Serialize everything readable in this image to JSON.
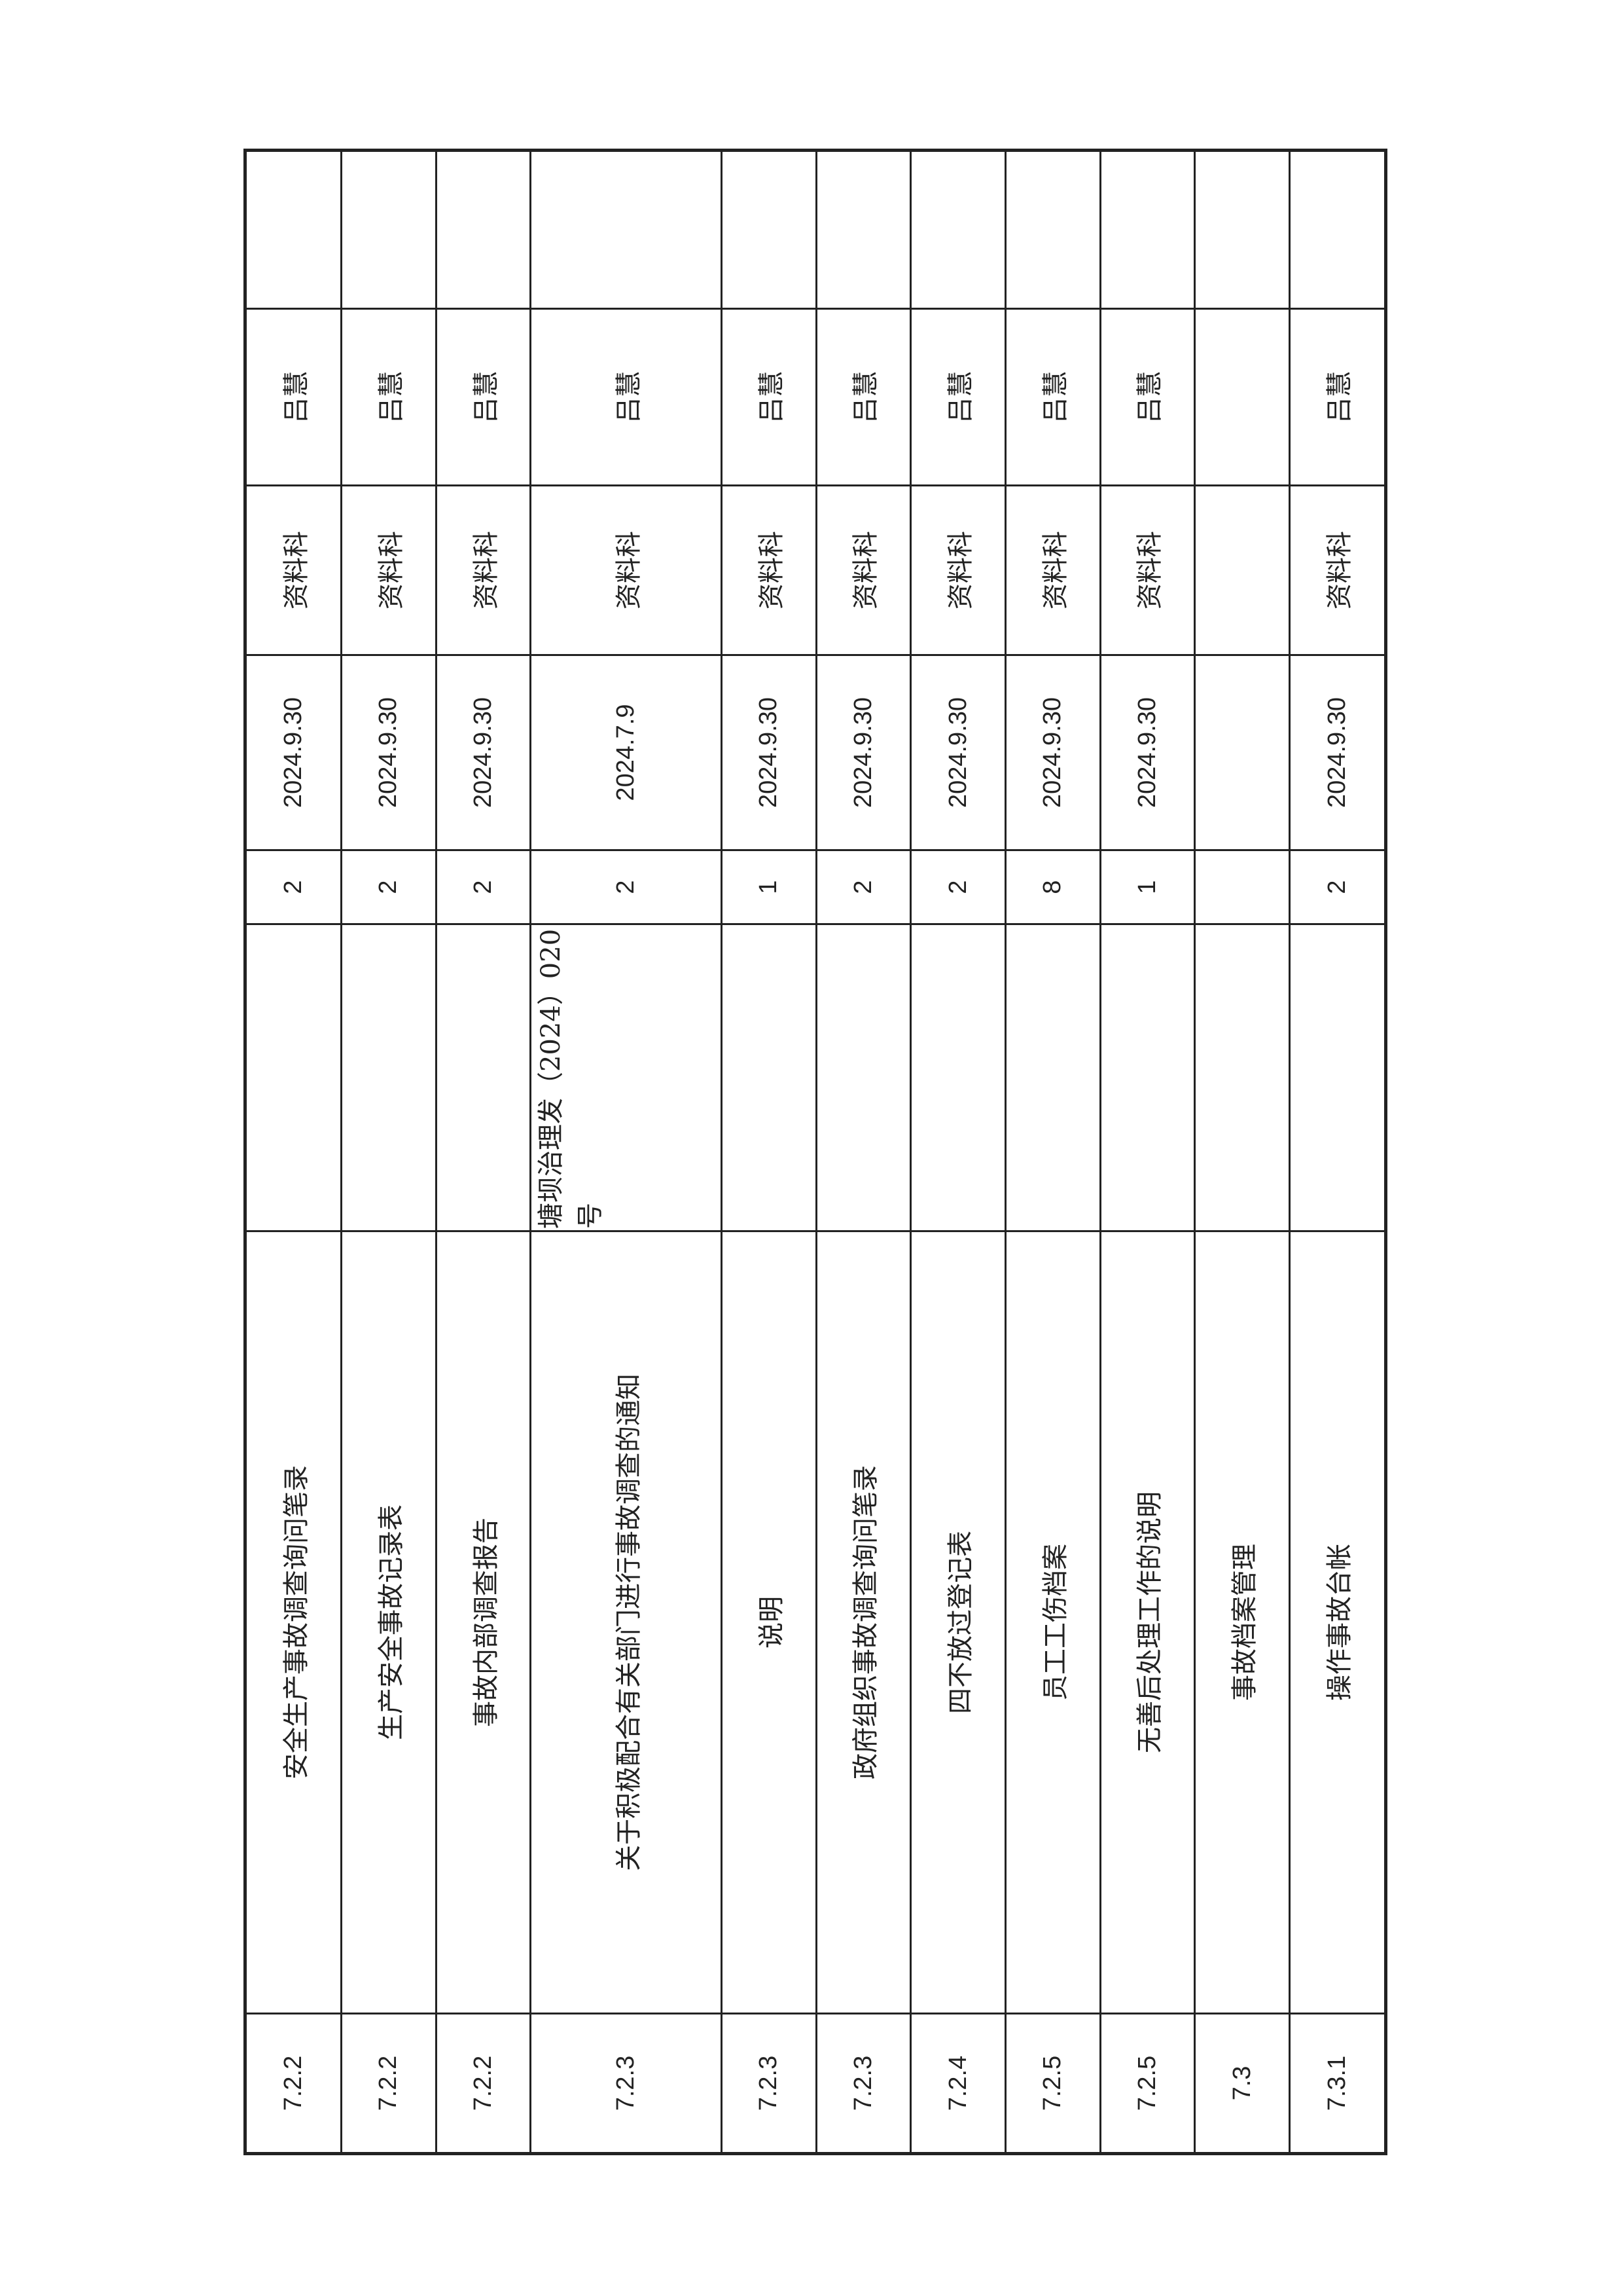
{
  "rows": [
    {
      "section": "7.2.2",
      "name": "安全生产事故调查询问笔录",
      "note": "",
      "count": "2",
      "date": "2024.9.30",
      "dept": "资料科",
      "person": "吕慧",
      "remark": ""
    },
    {
      "section": "7.2.2",
      "name": "生产安全事故记录表",
      "note": "",
      "count": "2",
      "date": "2024.9.30",
      "dept": "资料科",
      "person": "吕慧",
      "remark": ""
    },
    {
      "section": "7.2.2",
      "name": "事故内部调查报告",
      "note": "",
      "count": "2",
      "date": "2024.9.30",
      "dept": "资料科",
      "person": "吕慧",
      "remark": ""
    },
    {
      "section": "7.2.3",
      "name": "关于积极配合有关部门进行事故调查的通知",
      "note": "塘坝治理发（2024）020号",
      "count": "2",
      "date": "2024.7.9",
      "dept": "资料科",
      "person": "吕慧",
      "remark": ""
    },
    {
      "section": "7.2.3",
      "name": "说明",
      "note": "",
      "count": "1",
      "date": "2024.9.30",
      "dept": "资料科",
      "person": "吕慧",
      "remark": ""
    },
    {
      "section": "7.2.3",
      "name": "政府组织事故调查询问笔录",
      "note": "",
      "count": "2",
      "date": "2024.9.30",
      "dept": "资料科",
      "person": "吕慧",
      "remark": ""
    },
    {
      "section": "7.2.4",
      "name": "四不放过登记表",
      "note": "",
      "count": "2",
      "date": "2024.9.30",
      "dept": "资料科",
      "person": "吕慧",
      "remark": ""
    },
    {
      "section": "7.2.5",
      "name": "员工工伤档案",
      "note": "",
      "count": "8",
      "date": "2024.9.30",
      "dept": "资料科",
      "person": "吕慧",
      "remark": ""
    },
    {
      "section": "7.2.5",
      "name": "无善后处理工作的说明",
      "note": "",
      "count": "1",
      "date": "2024.9.30",
      "dept": "资料科",
      "person": "吕慧",
      "remark": ""
    },
    {
      "section": "7.3",
      "name": "事故档案管理",
      "note": "",
      "count": "",
      "date": "",
      "dept": "",
      "person": "",
      "remark": ""
    },
    {
      "section": "7.3.1",
      "name": "操作事故台帐",
      "note": "",
      "count": "2",
      "date": "2024.9.30",
      "dept": "资料科",
      "person": "吕慧",
      "remark": ""
    }
  ]
}
